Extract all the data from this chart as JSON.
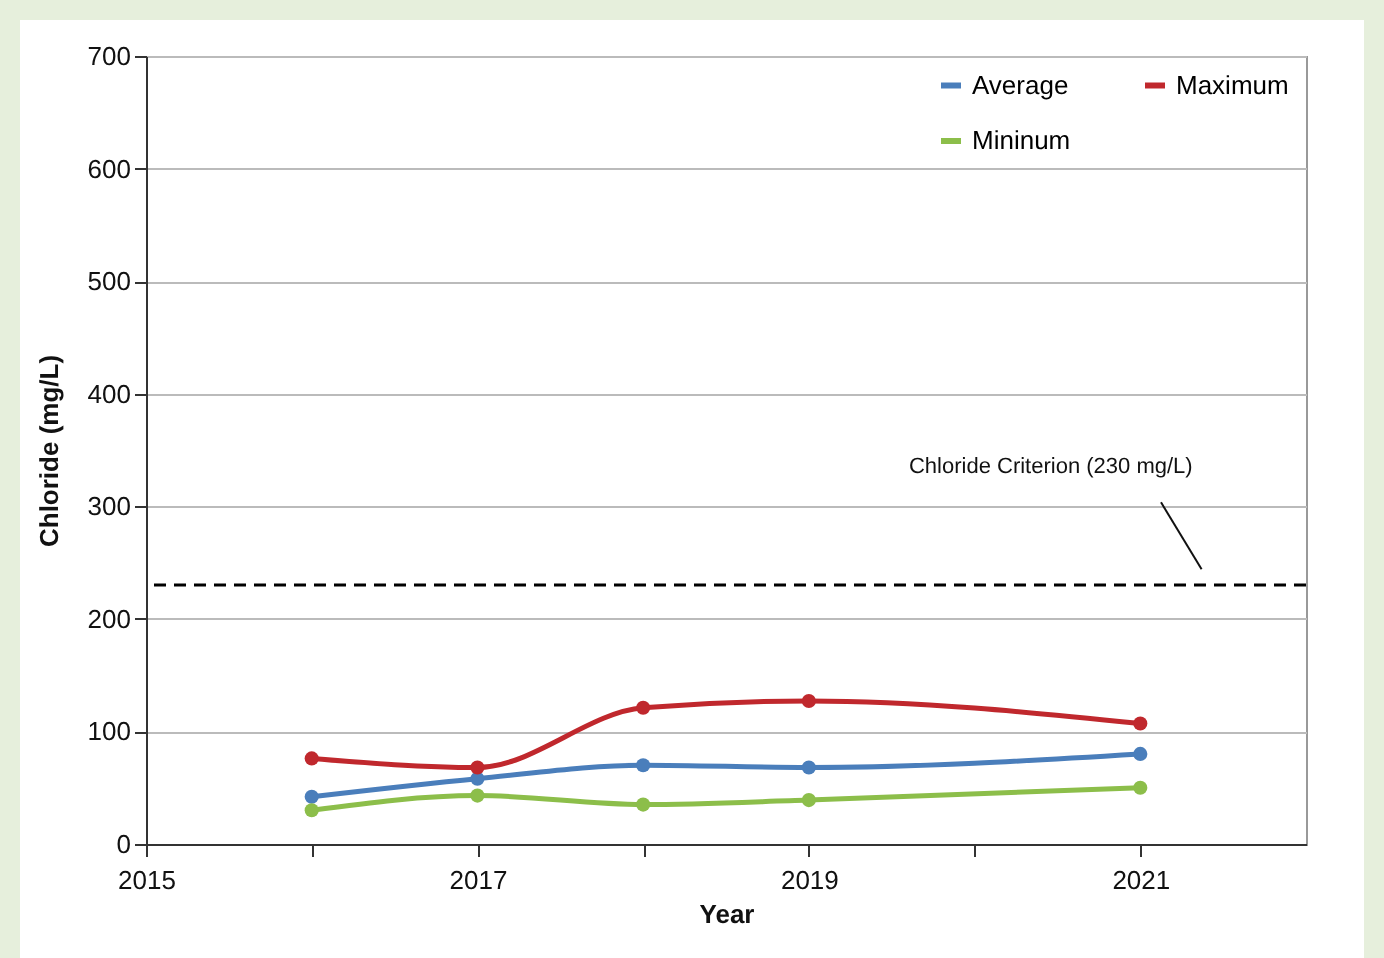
{
  "chart_data": {
    "type": "line",
    "xlabel": "Year",
    "ylabel": "Chloride (mg/L)",
    "x": [
      2016,
      2017,
      2018,
      2019,
      2021
    ],
    "series": [
      {
        "name": "Average",
        "color": "#4a7ebb",
        "values": [
          42,
          58,
          70,
          68,
          80
        ]
      },
      {
        "name": "Mininum",
        "color": "#8cbe4a",
        "values": [
          30,
          43,
          35,
          39,
          50
        ]
      },
      {
        "name": "Maximum",
        "color": "#c0282d",
        "values": [
          76,
          68,
          121,
          127,
          107
        ]
      }
    ],
    "xlim": [
      2015,
      2022
    ],
    "xticks": [
      2015,
      {
        "value": 2016,
        "label": null
      },
      2017,
      {
        "value": 2018,
        "label": null
      },
      2019,
      {
        "value": 2020,
        "label": null
      },
      2021
    ],
    "ylim": [
      0,
      700
    ],
    "yticks": [
      0,
      100,
      200,
      300,
      400,
      500,
      600,
      700
    ],
    "ref_lines": [
      {
        "axis": "y",
        "value": 230,
        "label": "Chloride Criterion (230 mg/L)",
        "color": "#000000",
        "line_style": "dashed"
      }
    ],
    "grid": "y",
    "legend": "top right",
    "marker": "circle",
    "line_style": "solid"
  }
}
